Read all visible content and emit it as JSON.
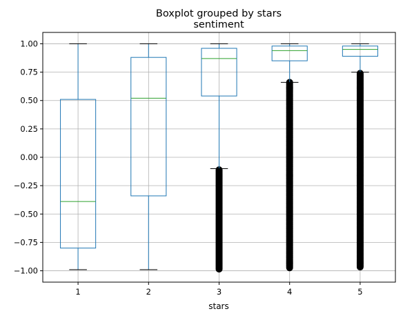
{
  "chart_data": {
    "type": "boxplot",
    "suptitle": "Boxplot grouped by stars",
    "title": "sentiment",
    "xlabel": "stars",
    "ylabel": "",
    "categories": [
      "1",
      "2",
      "3",
      "4",
      "5"
    ],
    "ylim": [
      -1.1,
      1.1
    ],
    "yticks": [
      -1.0,
      -0.75,
      -0.5,
      -0.25,
      0.0,
      0.25,
      0.5,
      0.75,
      1.0
    ],
    "ytick_labels": [
      "−1.00",
      "−0.75",
      "−0.50",
      "−0.25",
      "0.00",
      "0.25",
      "0.50",
      "0.75",
      "1.00"
    ],
    "grid": true,
    "colors": {
      "box": "#1f77b4",
      "median": "#2ca02c",
      "whisker": "#1f77b4",
      "cap": "#000000",
      "flier": "#000000",
      "grid": "#b0b0b0"
    },
    "boxes": [
      {
        "name": "1",
        "whislo": -0.99,
        "q1": -0.8,
        "med": -0.39,
        "q3": 0.51,
        "whishi": 1.0,
        "fliers": []
      },
      {
        "name": "2",
        "whislo": -0.99,
        "q1": -0.34,
        "med": 0.52,
        "q3": 0.88,
        "whishi": 1.0,
        "fliers": []
      },
      {
        "name": "3",
        "whislo": -0.1,
        "q1": 0.54,
        "med": 0.87,
        "q3": 0.96,
        "whishi": 1.0,
        "fliers_range": [
          -0.99,
          -0.11
        ]
      },
      {
        "name": "4",
        "whislo": 0.66,
        "q1": 0.85,
        "med": 0.94,
        "q3": 0.98,
        "whishi": 1.0,
        "fliers_range": [
          -0.98,
          0.66
        ]
      },
      {
        "name": "5",
        "whislo": 0.75,
        "q1": 0.89,
        "med": 0.95,
        "q3": 0.98,
        "whishi": 1.0,
        "fliers_range": [
          -0.97,
          0.74
        ]
      }
    ]
  }
}
